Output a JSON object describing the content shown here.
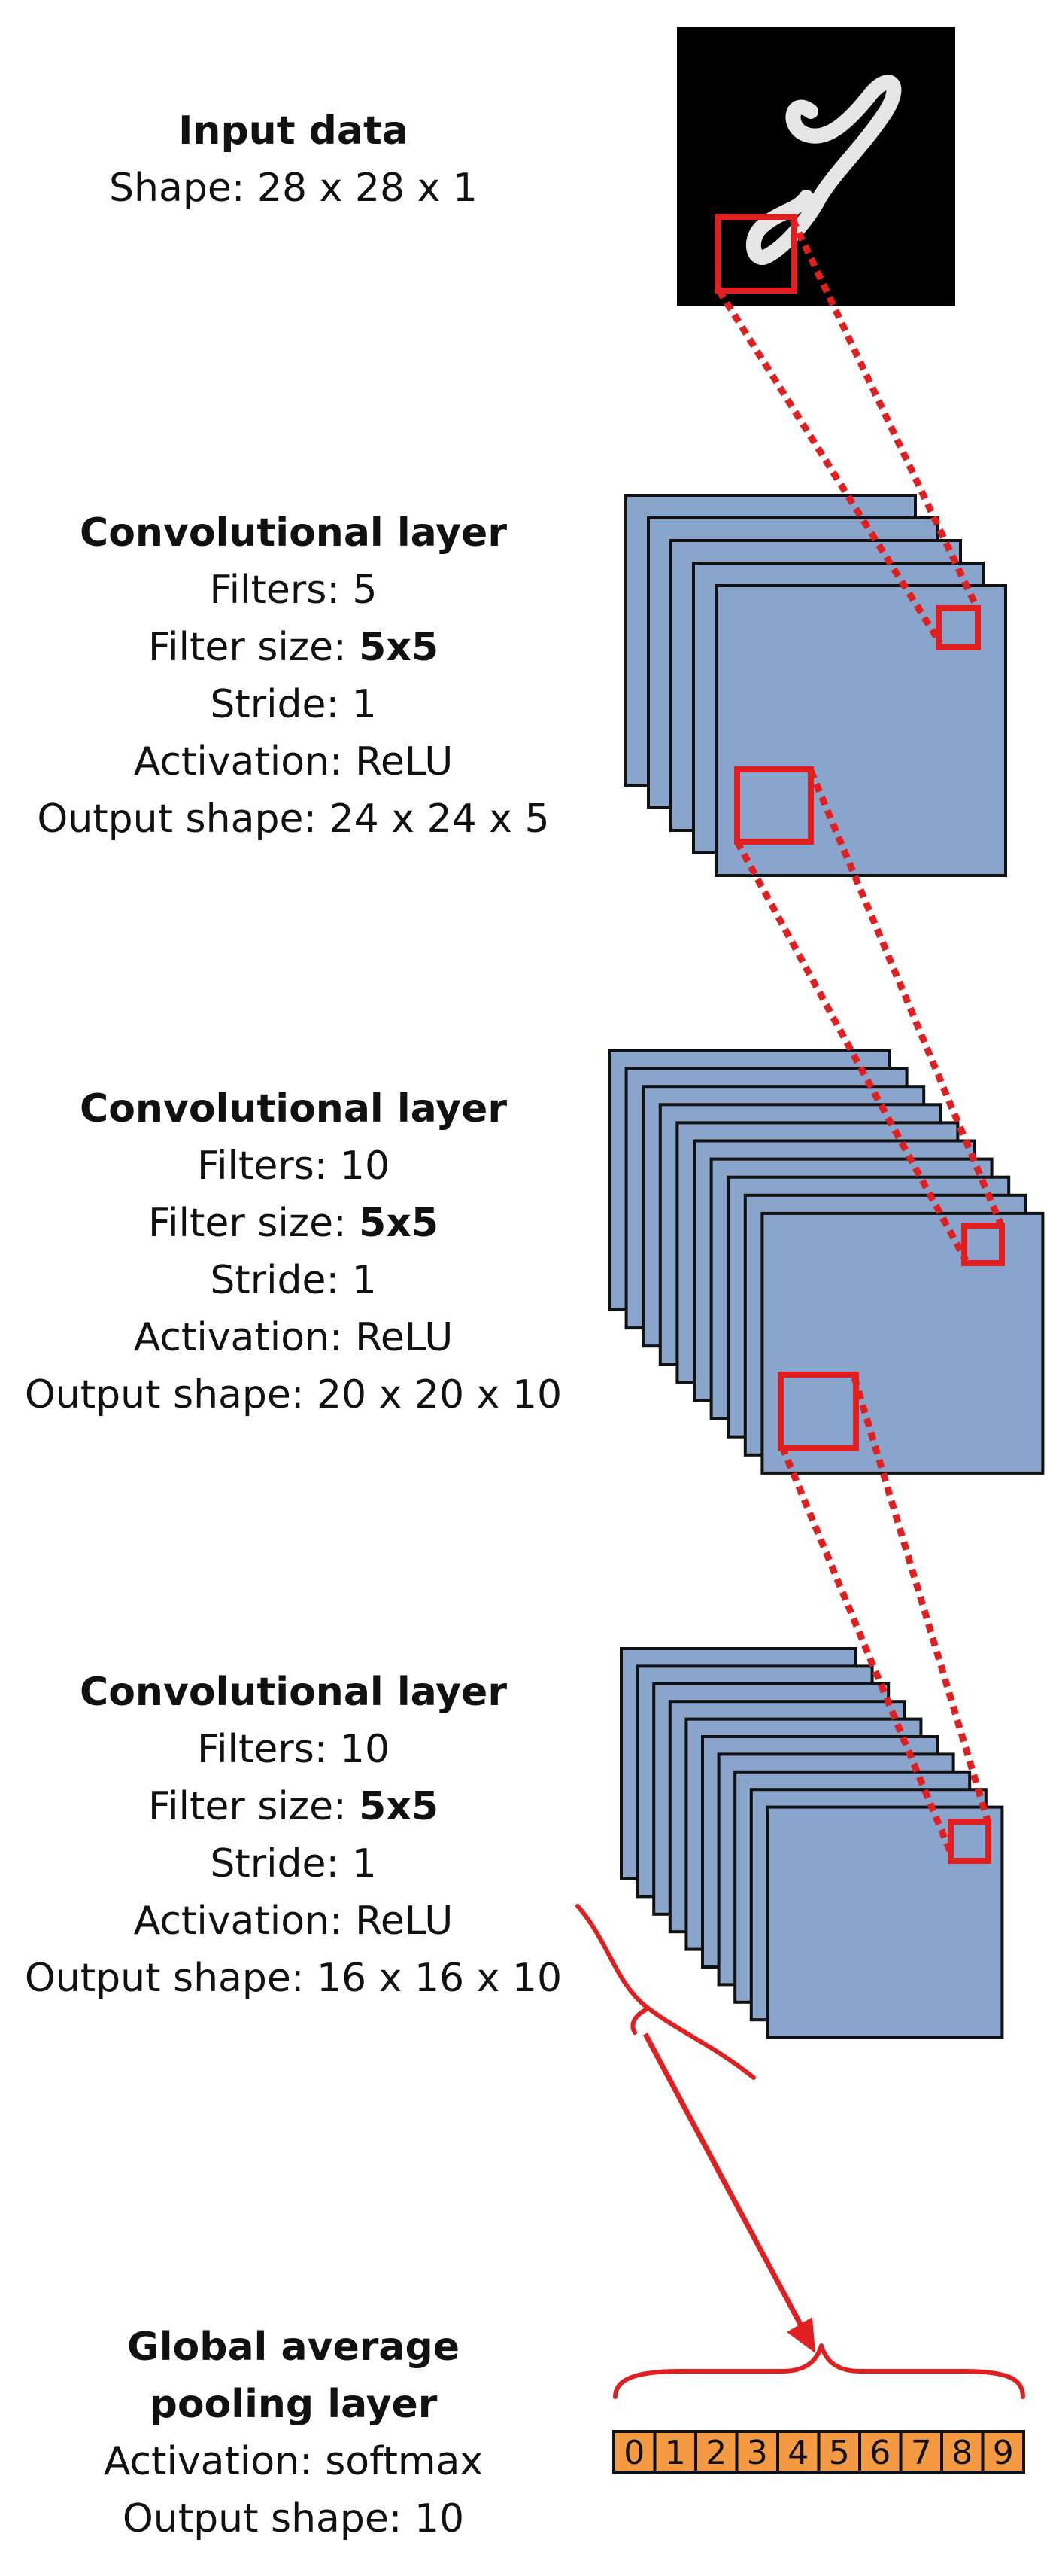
{
  "layers": [
    {
      "id": "input",
      "title_lines": [
        "Input data"
      ],
      "rows": [
        {
          "label": "Shape:",
          "value": "28 x 28 x 1",
          "bold": false
        }
      ]
    },
    {
      "id": "conv1",
      "title_lines": [
        "Convolutional layer"
      ],
      "rows": [
        {
          "label": "Filters:",
          "value": "5",
          "bold": false
        },
        {
          "label": "Filter size:",
          "value": "5x5",
          "bold": true
        },
        {
          "label": "Stride:",
          "value": "1",
          "bold": false
        },
        {
          "label": "Activation:",
          "value": "ReLU",
          "bold": false
        },
        {
          "label": "Output shape:",
          "value": "24 x 24 x 5",
          "bold": false
        }
      ],
      "maps": 5
    },
    {
      "id": "conv2",
      "title_lines": [
        "Convolutional layer"
      ],
      "rows": [
        {
          "label": "Filters:",
          "value": "10",
          "bold": false
        },
        {
          "label": "Filter size:",
          "value": "5x5",
          "bold": true
        },
        {
          "label": "Stride:",
          "value": "1",
          "bold": false
        },
        {
          "label": "Activation:",
          "value": "ReLU",
          "bold": false
        },
        {
          "label": "Output shape:",
          "value": "20 x 20 x 10",
          "bold": false
        }
      ],
      "maps": 10
    },
    {
      "id": "conv3",
      "title_lines": [
        "Convolutional layer"
      ],
      "rows": [
        {
          "label": "Filters:",
          "value": "10",
          "bold": false
        },
        {
          "label": "Filter size:",
          "value": "5x5",
          "bold": true
        },
        {
          "label": "Stride:",
          "value": "1",
          "bold": false
        },
        {
          "label": "Activation:",
          "value": "ReLU",
          "bold": false
        },
        {
          "label": "Output shape:",
          "value": "16 x 16 x 10",
          "bold": false
        }
      ],
      "maps": 10
    },
    {
      "id": "gap",
      "title_lines": [
        "Global average",
        "pooling layer"
      ],
      "rows": [
        {
          "label": "Activation:",
          "value": "softmax",
          "bold": false
        },
        {
          "label": "Output shape:",
          "value": "10",
          "bold": false
        }
      ]
    }
  ],
  "output_cells": [
    "0",
    "1",
    "2",
    "3",
    "4",
    "5",
    "6",
    "7",
    "8",
    "9"
  ],
  "colors": {
    "feature_map": "#8aa5cc",
    "connector": "#e02020",
    "output_cell": "#f39a43",
    "outline": "#111111",
    "input_background": "#000000",
    "digit_stroke": "#e6e6e6"
  },
  "icons": {
    "input_image": "handwritten-digit-image"
  }
}
